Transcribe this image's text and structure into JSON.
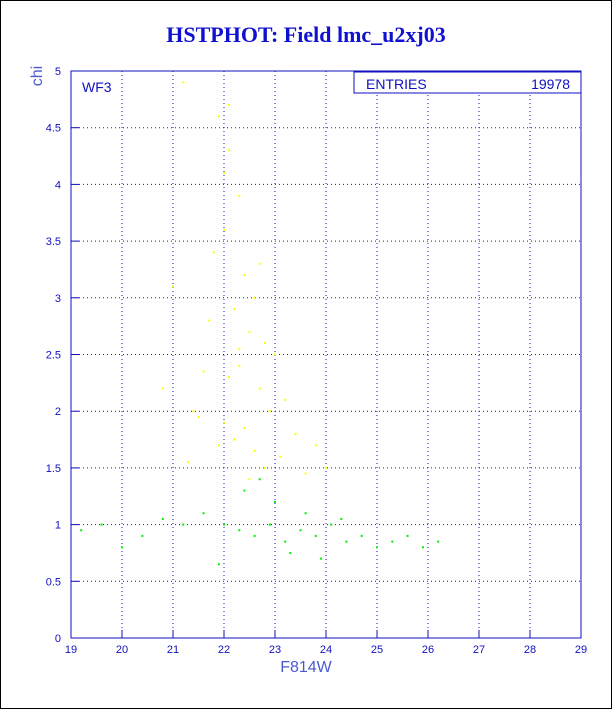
{
  "chart_data": {
    "type": "scatter",
    "title": "HSTPHOT: Field lmc_u2xj03",
    "xlabel": "F814W",
    "ylabel": "chi",
    "xlim": [
      19,
      29
    ],
    "ylim": [
      0,
      5
    ],
    "x_ticks": [
      "19",
      "20",
      "21",
      "22",
      "23",
      "24",
      "25",
      "26",
      "27",
      "28",
      "29"
    ],
    "y_ticks": [
      "0",
      "0.5",
      "1",
      "1.5",
      "2",
      "2.5",
      "3",
      "3.5",
      "4",
      "4.5",
      "5"
    ],
    "grid": true,
    "panel_label": "WF3",
    "stats_box": {
      "label": "ENTRIES",
      "value": "19978"
    },
    "series": [
      {
        "color": "#ffff00",
        "description": "higher-chi stars, concentrated around F814W 21.5-23.5, chi 1.3-4.8",
        "x": [
          21.9,
          22.1,
          22.3,
          22.0,
          21.8,
          22.4,
          22.6,
          22.2,
          21.7,
          22.5,
          22.8,
          23.0,
          22.3,
          21.6,
          22.1,
          22.7,
          23.2,
          22.9,
          21.5,
          22.0,
          22.4,
          23.4,
          22.2,
          21.9,
          22.6,
          23.1,
          21.3,
          22.8,
          23.6,
          22.5,
          21.2,
          22.0,
          24.0,
          21.0,
          22.3,
          20.8,
          23.8,
          22.7,
          21.4,
          22.1
        ],
        "y": [
          4.6,
          4.3,
          3.9,
          3.6,
          3.4,
          3.2,
          3.0,
          2.9,
          2.8,
          2.7,
          2.6,
          2.5,
          2.4,
          2.35,
          2.3,
          2.2,
          2.1,
          2.0,
          1.95,
          1.9,
          1.85,
          1.8,
          1.75,
          1.7,
          1.65,
          1.6,
          1.55,
          1.5,
          1.45,
          1.4,
          4.9,
          4.1,
          1.5,
          3.1,
          2.55,
          2.2,
          1.7,
          3.3,
          2.0,
          4.7
        ]
      },
      {
        "color": "#00ee00",
        "description": "main population, chi 0.5-1.5, F814W 19-26.5",
        "x": [
          19.2,
          19.6,
          20.0,
          20.4,
          20.8,
          21.2,
          21.6,
          22.0,
          22.3,
          22.6,
          22.9,
          23.2,
          23.5,
          23.8,
          24.1,
          24.4,
          24.7,
          25.0,
          25.3,
          25.6,
          25.9,
          26.2,
          22.4,
          23.0,
          23.3,
          23.6,
          23.9,
          22.7,
          24.3,
          21.9
        ],
        "y": [
          0.95,
          1.0,
          0.8,
          0.9,
          1.05,
          1.0,
          1.1,
          1.0,
          0.95,
          0.9,
          1.0,
          0.85,
          0.95,
          0.9,
          1.0,
          0.85,
          0.9,
          0.8,
          0.85,
          0.9,
          0.8,
          0.85,
          1.3,
          1.2,
          0.75,
          1.1,
          0.7,
          1.4,
          1.05,
          0.65
        ]
      }
    ]
  }
}
